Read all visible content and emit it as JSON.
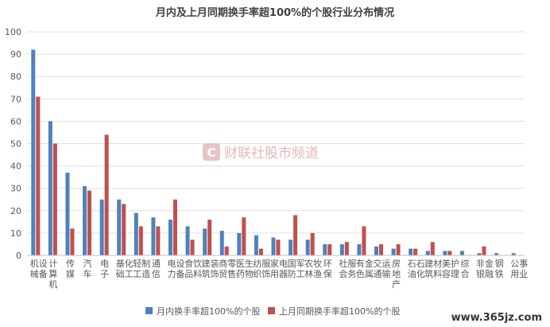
{
  "chart_data": {
    "type": "bar",
    "title": "月内及上月同期换手率超100%的个股行业分布情况",
    "categories": [
      "机械设备",
      "计算机",
      "传媒",
      "汽车",
      "电子",
      "基础化工",
      "轻工制造",
      "通信",
      "电力设备",
      "食品饮料",
      "建筑装饰",
      "商贸零售",
      "医药生物",
      "纺织服饰",
      "家用电器",
      "国防军工",
      "农林牧渔",
      "环保",
      "社会服务",
      "有色金属",
      "交通运输",
      "房地产",
      "石油石化",
      "建筑材料",
      "美容护理",
      "综合",
      "非银金融",
      "钢铁",
      "公用事业"
    ],
    "series": [
      {
        "name": "月内换手率超100%的个股",
        "color": "#4f81bd",
        "values": [
          92,
          60,
          37,
          31,
          25,
          25,
          19,
          17,
          16,
          13,
          12,
          11,
          10,
          9,
          8,
          7,
          7,
          5,
          5,
          5,
          4,
          3,
          3,
          2,
          2,
          2,
          1,
          1,
          1
        ]
      },
      {
        "name": "上月同期换手率超100%的个股",
        "color": "#c0504d",
        "values": [
          71,
          50,
          12,
          29,
          54,
          23,
          13,
          13,
          25,
          7,
          16,
          4,
          17,
          3,
          7,
          18,
          10,
          5,
          6,
          13,
          5,
          5,
          3,
          6,
          2,
          0,
          4,
          0,
          0
        ]
      }
    ],
    "ylim": [
      0,
      100
    ],
    "yticks": [
      "0",
      "10",
      "20",
      "30",
      "40",
      "50",
      "60",
      "70",
      "80",
      "90",
      "100"
    ],
    "grid": true,
    "legend_position": "bottom"
  },
  "watermark": {
    "icon_letter": "C",
    "text": "财联社股市频道"
  },
  "site_mark": "www.365jz.com"
}
